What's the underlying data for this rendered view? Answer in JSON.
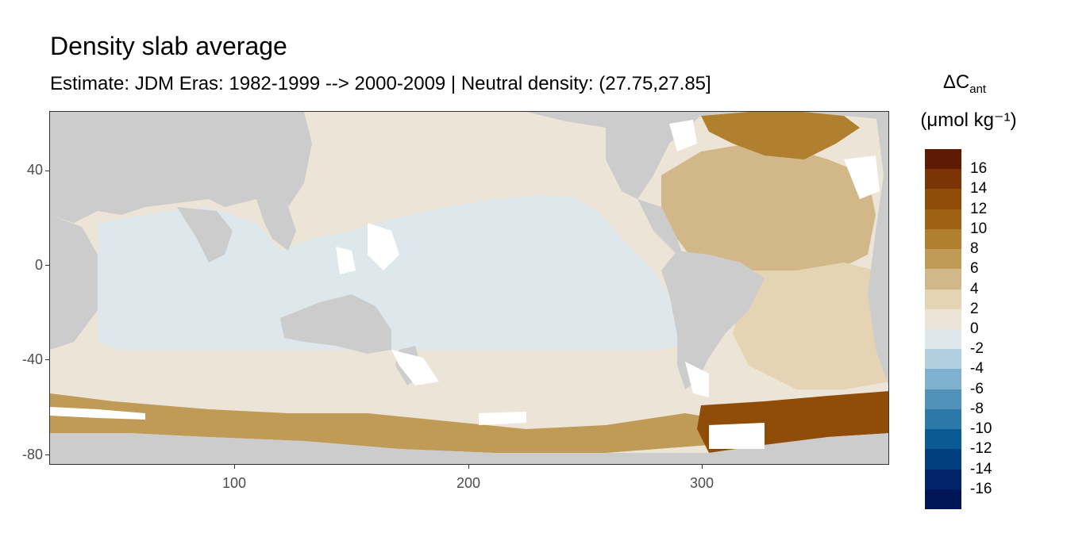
{
  "title": "Density slab average",
  "subtitle": "Estimate: JDM Eras: 1982-1999 --> 2000-2009 | Neutral density: (27.75,27.85]",
  "axes": {
    "x_ticks": [
      "100",
      "200",
      "300"
    ],
    "y_ticks": [
      "40",
      "0",
      "-40",
      "-80"
    ]
  },
  "legend": {
    "title_main": "ΔC",
    "title_sub": "ant",
    "unit": "(μmol kg⁻¹)",
    "labels": [
      "16",
      "14",
      "12",
      "10",
      "8",
      "6",
      "4",
      "2",
      "0",
      "-2",
      "-4",
      "-6",
      "-8",
      "-10",
      "-12",
      "-14",
      "-16"
    ],
    "colors": [
      "#5e1a02",
      "#7a3405",
      "#8f4d08",
      "#9e6212",
      "#b0802f",
      "#c09a57",
      "#d2b888",
      "#e4d4b4",
      "#ece4d6",
      "#dde7ec",
      "#b2cfe0",
      "#7fb0cf",
      "#5292ba",
      "#2b79a8",
      "#0c5a94",
      "#023f80",
      "#01246a",
      "#001656"
    ]
  },
  "map": {
    "land_color": "#cccccc",
    "background_color": "#ffffff",
    "regions": [
      {
        "name": "north-pacific",
        "value_range": "0 to 2",
        "color": "#ece4d6"
      },
      {
        "name": "tropical-pacific-indian",
        "value_range": "-2 to 0",
        "color": "#dde7ec"
      },
      {
        "name": "southern-ocean-band",
        "value_range": "0 to 2",
        "color": "#ece4d6"
      },
      {
        "name": "north-atlantic",
        "value_range": "4 to 6",
        "color": "#d2b888"
      },
      {
        "name": "subpolar-north-atlantic",
        "value_range": "8 to 12",
        "color": "#b0802f"
      },
      {
        "name": "weddell-sea",
        "value_range": "12 to 14",
        "color": "#8f4d08"
      },
      {
        "name": "antarctic-margin",
        "value_range": "6 to 10",
        "color": "#c09a57"
      }
    ]
  }
}
